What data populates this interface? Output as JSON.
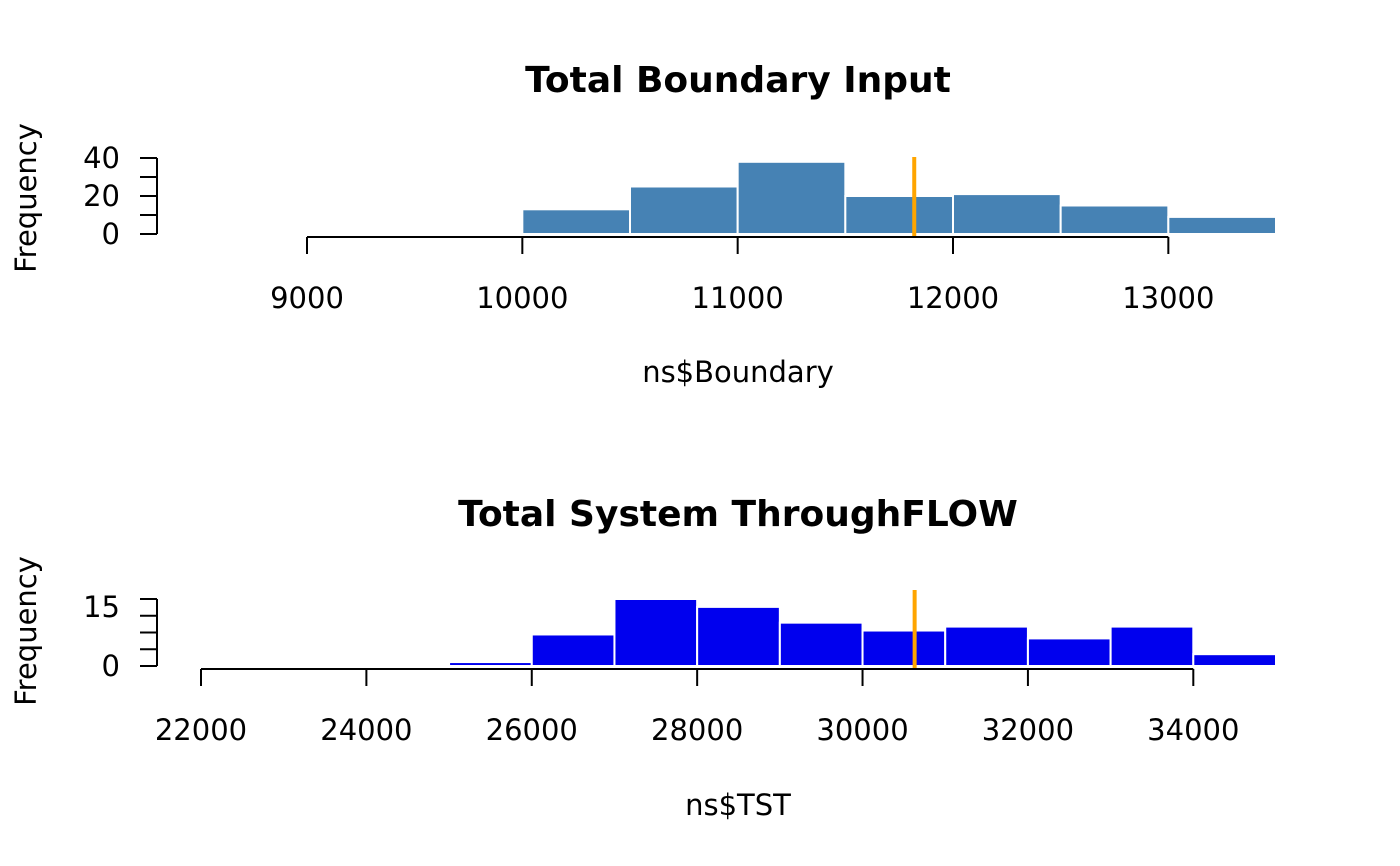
{
  "chart_data": [
    {
      "type": "bar",
      "title": "Total Boundary Input",
      "xlabel": "ns$Boundary",
      "ylabel": "Frequency",
      "bar_color": "#4682B4",
      "bin_edges": [
        10000,
        10500,
        11000,
        11500,
        12000,
        12500,
        13000,
        13500
      ],
      "values": [
        13,
        25,
        38,
        20,
        21,
        15,
        9
      ],
      "x_ticks": [
        "9000",
        "10000",
        "11000",
        "12000",
        "13000"
      ],
      "y_ticks": [
        "0",
        "20",
        "40"
      ],
      "xlim": [
        9000,
        13500
      ],
      "ylim": [
        0,
        40
      ],
      "marker": {
        "value": 11820,
        "color": "#FFA500"
      }
    },
    {
      "type": "bar",
      "title": "Total System ThroughFLOW",
      "xlabel": "ns$TST",
      "ylabel": "Frequency",
      "bar_color": "#0000EE",
      "bin_edges": [
        22000,
        23000,
        24000,
        25000,
        26000,
        27000,
        28000,
        29000,
        30000,
        31000,
        32000,
        33000,
        34000,
        35000
      ],
      "values": [
        0.2,
        0,
        0,
        1,
        8,
        17,
        15,
        11,
        9,
        10,
        7,
        10,
        3
      ],
      "x_ticks": [
        "22000",
        "24000",
        "26000",
        "28000",
        "30000",
        "32000",
        "34000"
      ],
      "y_ticks": [
        "0",
        "15"
      ],
      "xlim": [
        22000,
        35000
      ],
      "ylim": [
        0,
        17
      ],
      "marker": {
        "value": 30630,
        "color": "#FFA500"
      }
    }
  ]
}
